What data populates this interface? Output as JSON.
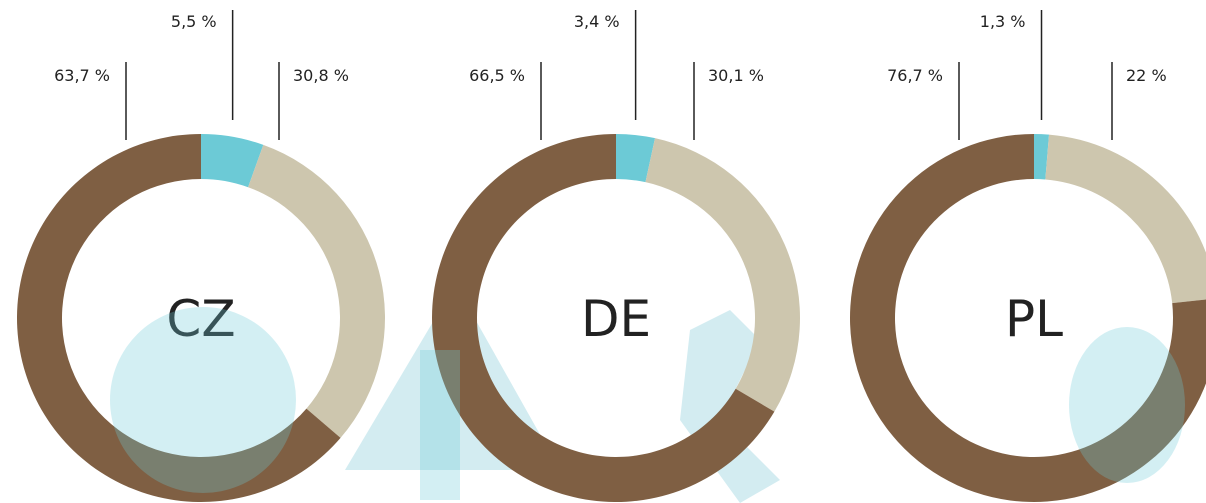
{
  "chart_data": [
    {
      "type": "donut",
      "title": "CZ",
      "values": [
        5.5,
        30.8,
        63.7
      ],
      "value_labels": [
        "5,5 %",
        "30,8 %",
        "63,7 %"
      ],
      "colors": [
        "#6ccad6",
        "#cdc6ae",
        "#7f5f43"
      ]
    },
    {
      "type": "donut",
      "title": "DE",
      "values": [
        3.4,
        30.1,
        66.5
      ],
      "value_labels": [
        "3,4 %",
        "30,1 %",
        "66,5 %"
      ],
      "colors": [
        "#6ccad6",
        "#cdc6ae",
        "#7f5f43"
      ]
    },
    {
      "type": "donut",
      "title": "PL",
      "values": [
        1.3,
        22,
        76.7
      ],
      "value_labels": [
        "1,3 %",
        "22 %",
        "76,7 %"
      ],
      "colors": [
        "#6ccad6",
        "#cdc6ae",
        "#7f5f43"
      ]
    }
  ]
}
